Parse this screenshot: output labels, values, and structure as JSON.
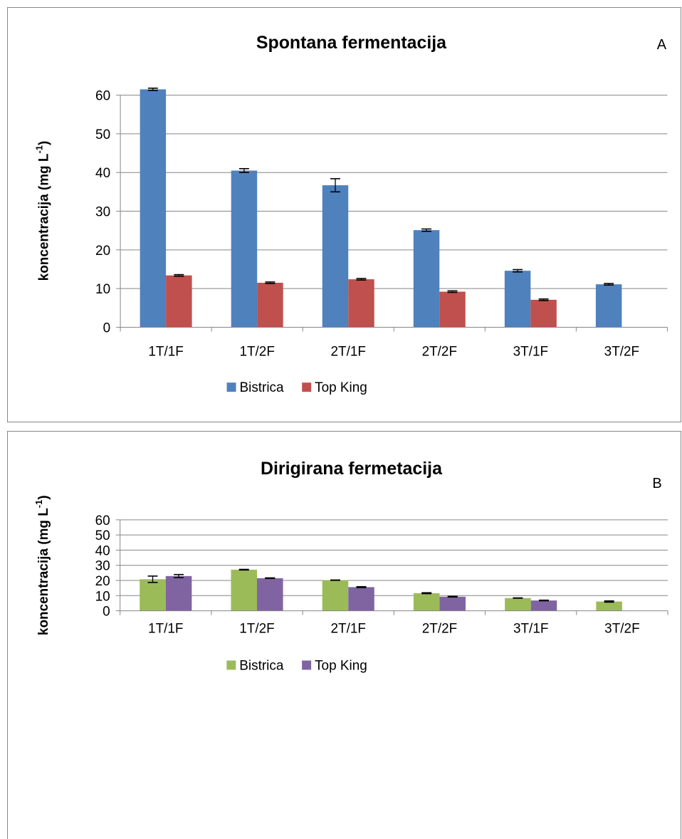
{
  "colors": {
    "grid": "#868686",
    "axis": "#868686",
    "error_bar": "#000000"
  },
  "chart_data": [
    {
      "type": "bar",
      "title": "Spontana fermentacija",
      "panel_letter": "A",
      "ylabel_main": "koncentracija (mg L",
      "ylabel_sup": "-1",
      "ylabel_close": ")",
      "ylim": [
        0,
        60
      ],
      "yticks": [
        0,
        10,
        20,
        30,
        40,
        50,
        60
      ],
      "categories": [
        "1T/1F",
        "1T/2F",
        "2T/1F",
        "2T/2F",
        "3T/1F",
        "3T/2F"
      ],
      "series": [
        {
          "name": "Bistrica",
          "color": "#4f81bd",
          "values": [
            61.5,
            40.5,
            36.7,
            25.1,
            14.6,
            11.1
          ],
          "errors": [
            0.3,
            0.5,
            1.7,
            0.3,
            0.3,
            0.2
          ]
        },
        {
          "name": "Top King",
          "color": "#c0504d",
          "values": [
            13.4,
            11.5,
            12.4,
            9.2,
            7.1,
            null
          ],
          "errors": [
            0.2,
            0.2,
            0.2,
            0.2,
            0.2,
            null
          ]
        }
      ],
      "grid": true,
      "legend": "bottom"
    },
    {
      "type": "bar",
      "title": "Dirigirana fermetacija",
      "panel_letter": "B",
      "ylabel_main": "koncentracija (mg L",
      "ylabel_sup": "-1",
      "ylabel_close": ")",
      "ylim": [
        0,
        60
      ],
      "yticks": [
        0,
        10,
        20,
        30,
        40,
        50,
        60
      ],
      "categories": [
        "1T/1F",
        "1T/2F",
        "2T/1F",
        "2T/2F",
        "3T/1F",
        "3T/2F"
      ],
      "series": [
        {
          "name": "Bistrica",
          "color": "#9bbb59",
          "values": [
            20.8,
            27.1,
            20.2,
            11.6,
            8.4,
            6.1
          ],
          "errors": [
            2.1,
            0.2,
            0.1,
            0.3,
            0.1,
            0.4
          ]
        },
        {
          "name": "Top King",
          "color": "#8064a2",
          "values": [
            22.9,
            21.5,
            15.6,
            9.3,
            6.8,
            null
          ],
          "errors": [
            1.0,
            0.2,
            0.3,
            0.2,
            0.2,
            null
          ]
        }
      ],
      "grid": true,
      "legend": "bottom"
    }
  ]
}
